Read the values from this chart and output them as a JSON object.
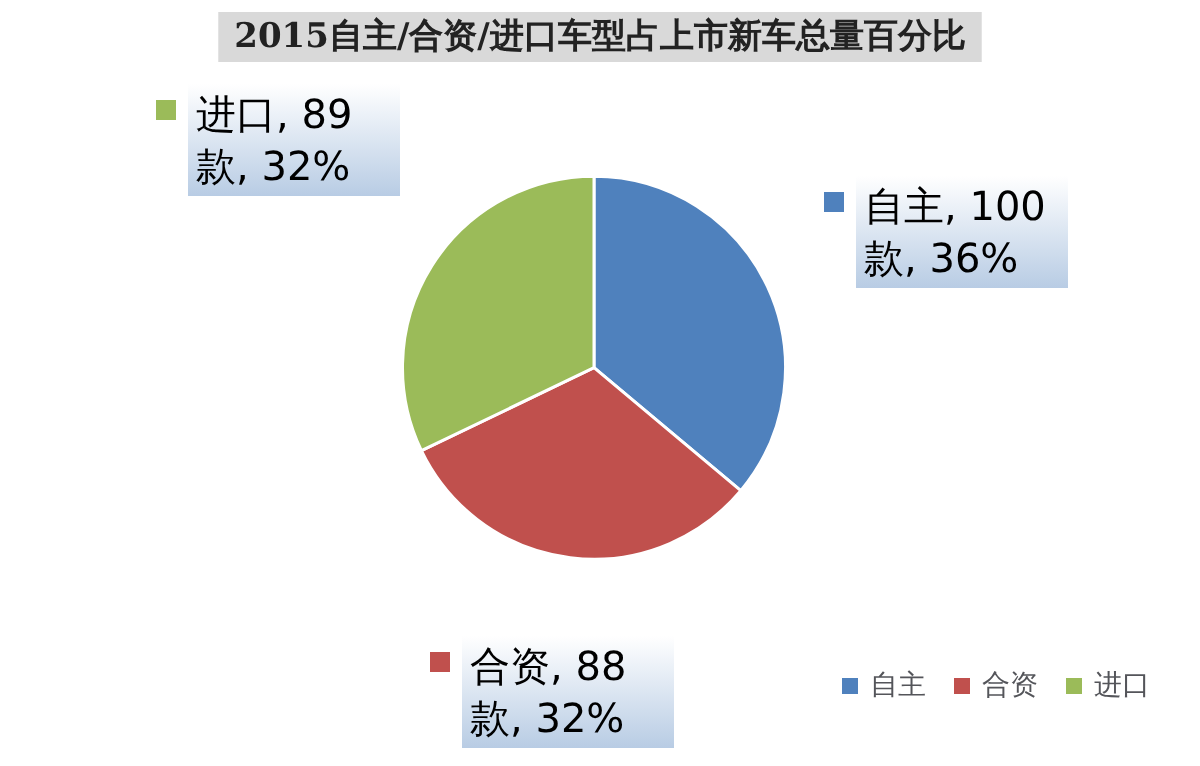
{
  "chart_data": {
    "type": "pie",
    "title": "2015自主/合资/进口车型占上市新车总量百分比",
    "categories": [
      "自主",
      "合资",
      "进口"
    ],
    "values": [
      100,
      88,
      89
    ],
    "colors": [
      "#4f81bd",
      "#c0504d",
      "#9bbb59"
    ],
    "value_labels": [
      "自主, 100 款, 36%",
      "合资, 88 款, 32%",
      "进口, 89 款, 32%"
    ],
    "legend": "bottom right"
  }
}
